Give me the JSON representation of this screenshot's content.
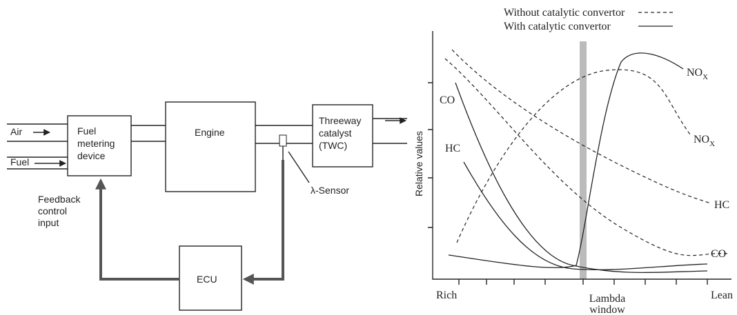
{
  "block_diagram": {
    "inputs": {
      "air": "Air",
      "fuel": "Fuel"
    },
    "fuel_metering": {
      "lines": [
        "Fuel",
        "metering",
        "device"
      ]
    },
    "engine": "Engine",
    "catalyst": {
      "lines": [
        "Threeway",
        "catalyst",
        "(TWC)"
      ]
    },
    "sensor": "λ-Sensor",
    "feedback": {
      "lines": [
        "Feedback",
        "control",
        "input"
      ]
    },
    "ecu": "ECU"
  },
  "emission_chart": {
    "legend": {
      "dashed": "Without catalytic convertor",
      "solid": "With catalytic convertor"
    },
    "y_label": "Relative values",
    "curve_labels": {
      "co_left": "CO",
      "hc_left": "HC",
      "nox_solid": {
        "main": "NO",
        "sub": "X"
      },
      "nox_dashed": {
        "main": "NO",
        "sub": "X"
      },
      "hc_right": "HC",
      "co_right": "CO"
    },
    "x_labels": {
      "rich": "Rich",
      "lambda": [
        "Lambda",
        "window"
      ],
      "lean": "Lean"
    }
  }
}
